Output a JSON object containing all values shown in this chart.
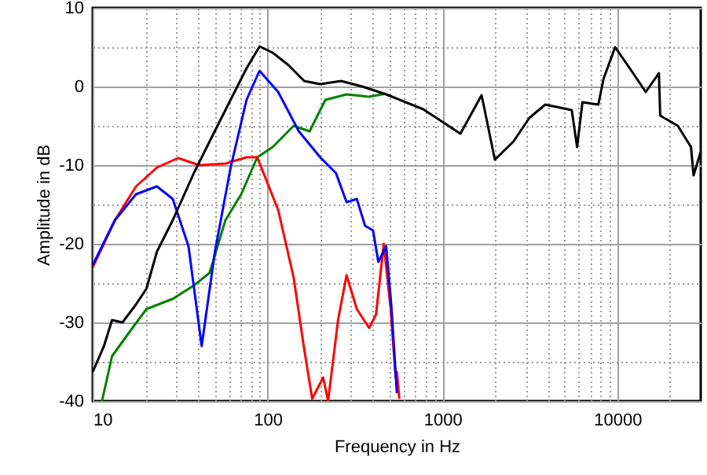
{
  "chart_data": {
    "type": "line",
    "xlabel": "Frequency in Hz",
    "ylabel": "Amplitude in dB",
    "log": "x",
    "grid": true,
    "xlim": [
      10,
      30000
    ],
    "ylim": [
      -40,
      10
    ],
    "xticks": [
      10,
      {
        "value": 20,
        "label": null
      },
      {
        "value": 30,
        "label": null
      },
      {
        "value": 40,
        "label": null
      },
      {
        "value": 50,
        "label": null
      },
      {
        "value": 60,
        "label": null
      },
      {
        "value": 70,
        "label": null
      },
      {
        "value": 80,
        "label": null
      },
      {
        "value": 90,
        "label": null
      },
      100,
      {
        "value": 200,
        "label": null
      },
      {
        "value": 300,
        "label": null
      },
      {
        "value": 400,
        "label": null
      },
      {
        "value": 500,
        "label": null
      },
      {
        "value": 600,
        "label": null
      },
      {
        "value": 700,
        "label": null
      },
      {
        "value": 800,
        "label": null
      },
      {
        "value": 900,
        "label": null
      },
      1000,
      {
        "value": 2000,
        "label": null
      },
      {
        "value": 3000,
        "label": null
      },
      {
        "value": 4000,
        "label": null
      },
      {
        "value": 5000,
        "label": null
      },
      {
        "value": 6000,
        "label": null
      },
      {
        "value": 7000,
        "label": null
      },
      {
        "value": 8000,
        "label": null
      },
      {
        "value": 9000,
        "label": null
      },
      10000,
      {
        "value": 20000,
        "label": null
      }
    ],
    "yticks": [
      -40,
      {
        "value": -35,
        "label": null
      },
      -30,
      {
        "value": -25,
        "label": null
      },
      -20,
      {
        "value": -15,
        "label": null
      },
      -10,
      {
        "value": -5,
        "label": null
      },
      0,
      {
        "value": 5,
        "label": null
      },
      10
    ],
    "series": [
      {
        "color": "#008000",
        "x": [
          11.3,
          12.9,
          16.5,
          20.3,
          28.7,
          37.9,
          46.6,
          57.4,
          70.7,
          87.3,
          107,
          141,
          174,
          214,
          283,
          380,
          477
        ],
        "values": [
          -40,
          -34.3,
          -31,
          -28.3,
          -27,
          -25.3,
          -23.7,
          -17,
          -13.7,
          -9,
          -7.7,
          -5,
          -5.7,
          -1.7,
          -1,
          -1.3,
          -0.9
        ]
      },
      {
        "color": "#ff0000",
        "x": [
          10,
          13.4,
          17.7,
          23.3,
          30.8,
          40.6,
          57.4,
          75.8,
          87.3,
          115,
          141,
          161,
          180,
          208,
          222,
          253,
          283,
          324,
          381,
          417,
          462,
          506,
          540,
          549,
          567
        ],
        "values": [
          -23,
          -17,
          -12.7,
          -10.3,
          -9.1,
          -10,
          -9.8,
          -9,
          -9,
          -15.7,
          -24.3,
          -33,
          -39.7,
          -37,
          -40,
          -29.7,
          -24,
          -28.3,
          -30.7,
          -29,
          -20,
          -28.3,
          -37,
          -36.3,
          -39.7
        ]
      },
      {
        "color": "#0000ff",
        "x": [
          10,
          13.4,
          17.7,
          23.3,
          28.7,
          35.3,
          42,
          50,
          61.5,
          75.8,
          90,
          115,
          151,
          200,
          246,
          283,
          324,
          361,
          401,
          430,
          477,
          512,
          549
        ],
        "values": [
          -22.7,
          -17,
          -13.7,
          -12.7,
          -14.3,
          -20.3,
          -33,
          -21,
          -10.3,
          -1.7,
          2,
          -0.7,
          -5.7,
          -9,
          -11,
          -14.7,
          -14.3,
          -17.7,
          -18.3,
          -22.3,
          -20.3,
          -28.3,
          -39
        ]
      },
      {
        "color": "#000000",
        "x": [
          10,
          11.6,
          12.9,
          14.8,
          17.7,
          20.3,
          23.3,
          28.7,
          37.9,
          46.6,
          57.4,
          75.8,
          90,
          107,
          132,
          162,
          200,
          263,
          348,
          477,
          778,
          1267,
          1675,
          1995,
          2547,
          3140,
          3873,
          5490,
          5890,
          6320,
          7790,
          8350,
          9720,
          11800,
          14550,
          17300,
          17600,
          22200,
          26400,
          27300,
          30000
        ],
        "values": [
          -36.3,
          -33,
          -29.7,
          -30,
          -27.7,
          -25.7,
          -21,
          -17,
          -11,
          -7,
          -3,
          2.3,
          5.1,
          4.3,
          2.7,
          0.7,
          0.3,
          0.7,
          0,
          -1,
          -2.9,
          -6,
          -1.1,
          -9.3,
          -7,
          -4,
          -2.3,
          -3,
          -7.7,
          -2,
          -2.3,
          1,
          5,
          2.3,
          -0.7,
          1.7,
          -3.7,
          -5,
          -7.7,
          -11.3,
          -8.3
        ]
      }
    ]
  }
}
